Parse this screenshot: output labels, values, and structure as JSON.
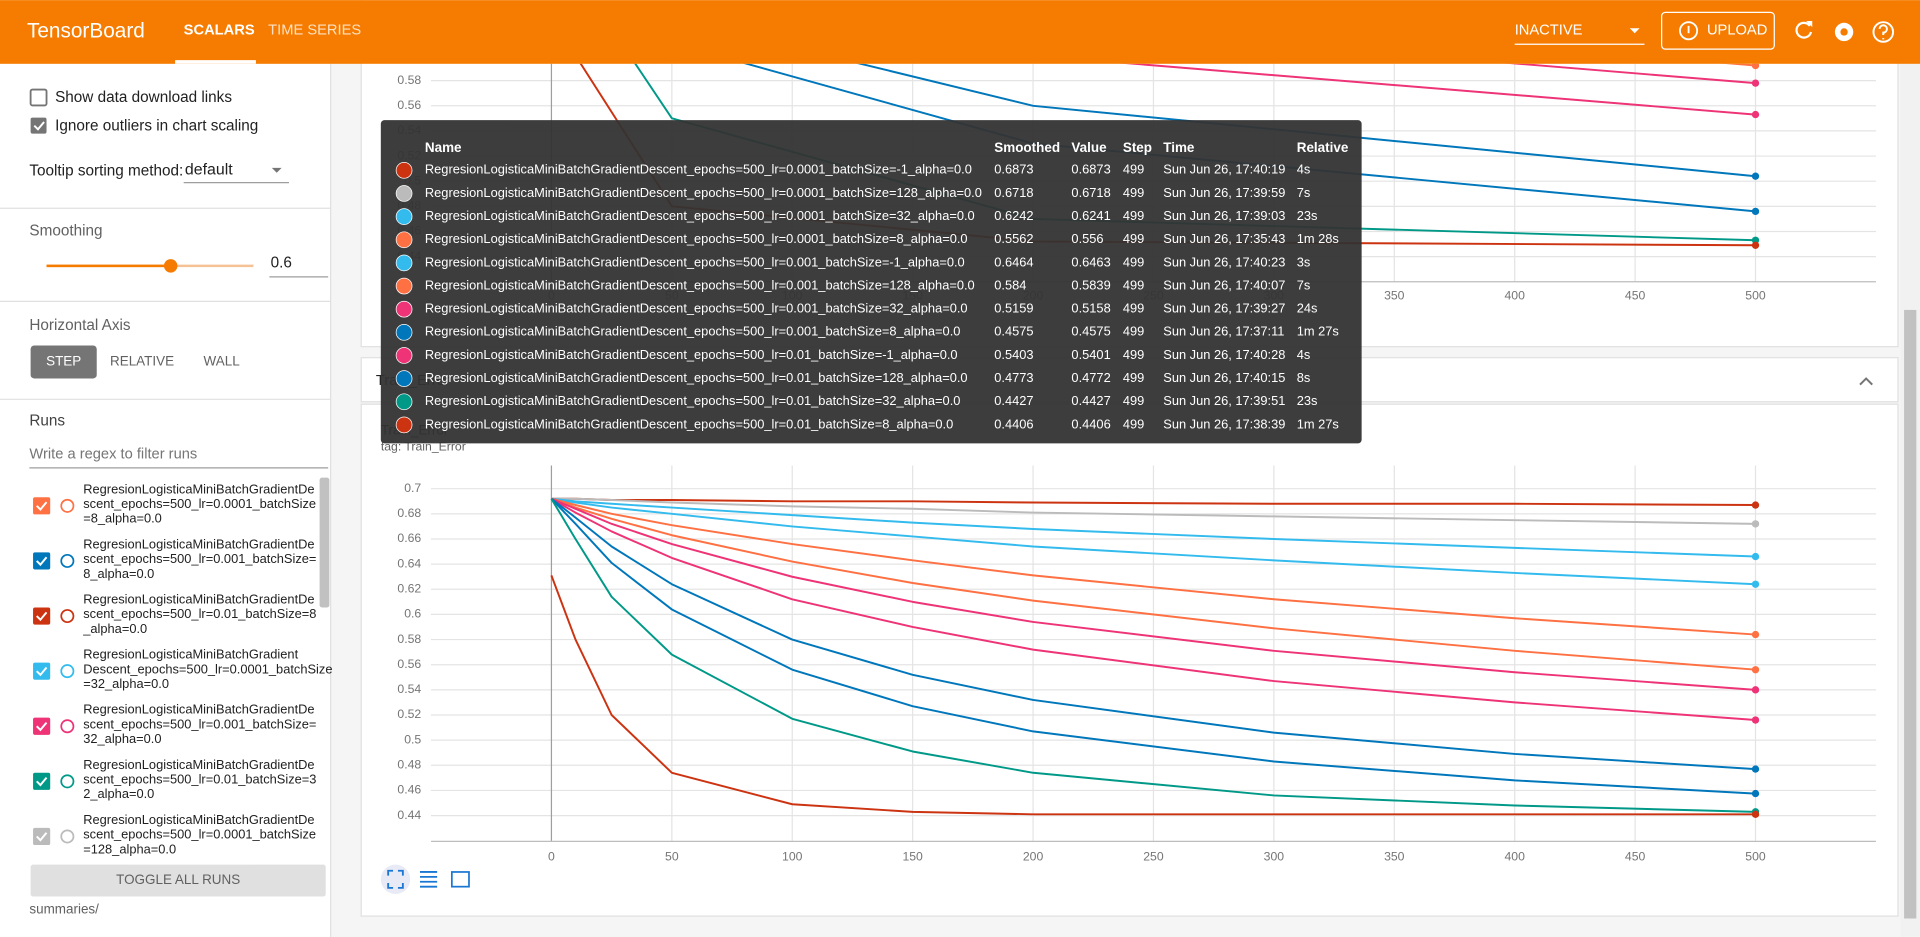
{
  "header": {
    "title": "TensorBoard",
    "tabs": [
      "SCALARS",
      "TIME SERIES"
    ],
    "status": "INACTIVE",
    "upload": "UPLOAD"
  },
  "sidebar": {
    "show_download": "Show data download links",
    "ignore_outliers": "Ignore outliers in chart scaling",
    "tooltip_sorting_label": "Tooltip sorting method:",
    "tooltip_sorting_value": "default",
    "smoothing_title": "Smoothing",
    "smoothing_value": 0.6,
    "horizontal_axis_title": "Horizontal Axis",
    "axis_options": [
      "STEP",
      "RELATIVE",
      "WALL"
    ],
    "runs_title": "Runs",
    "runs_filter_placeholder": "Write a regex to filter runs",
    "runs": [
      {
        "lines": [
          "RegresionLogisticaMiniBatchGradientDe",
          "scent_epochs=500_lr=0.0001_batchSize",
          "=8_alpha=0.0"
        ],
        "color": "#ff7043"
      },
      {
        "lines": [
          "RegresionLogisticaMiniBatchGradientDe",
          "scent_epochs=500_lr=0.001_batchSize=",
          "8_alpha=0.0"
        ],
        "color": "#0077bb"
      },
      {
        "lines": [
          "RegresionLogisticaMiniBatchGradientDe",
          "scent_epochs=500_lr=0.01_batchSize=8",
          "_alpha=0.0"
        ],
        "color": "#cc3311"
      },
      {
        "lines": [
          "RegresionLogisticaMiniBatchGradient",
          "Descent_epochs=500_lr=0.0001_batchSize",
          "=32_alpha=0.0"
        ],
        "color": "#33bbee"
      },
      {
        "lines": [
          "RegresionLogisticaMiniBatchGradientDe",
          "scent_epochs=500_lr=0.001_batchSize=",
          "32_alpha=0.0"
        ],
        "color": "#ee3377"
      },
      {
        "lines": [
          "RegresionLogisticaMiniBatchGradientDe",
          "scent_epochs=500_lr=0.01_batchSize=3",
          "2_alpha=0.0"
        ],
        "color": "#009988"
      },
      {
        "lines": [
          "RegresionLogisticaMiniBatchGradientDe",
          "scent_epochs=500_lr=0.0001_batchSize",
          "=128_alpha=0.0"
        ],
        "color": "#bbbbbb"
      }
    ],
    "toggle": "TOGGLE ALL RUNS",
    "footer": "summaries/"
  },
  "tooltip": {
    "columns": [
      "Name",
      "Smoothed",
      "Value",
      "Step",
      "Time",
      "Relative"
    ],
    "rows": [
      [
        "RegresionLogisticaMiniBatchGradientDescent_epochs=500_lr=0.0001_batchSize=-1_alpha=0.0",
        0.6873,
        0.6873,
        499,
        "Sun Jun 26, 17:40:19",
        "4s"
      ],
      [
        "RegresionLogisticaMiniBatchGradientDescent_epochs=500_lr=0.0001_batchSize=128_alpha=0.0",
        0.6718,
        0.6718,
        499,
        "Sun Jun 26, 17:39:59",
        "7s"
      ],
      [
        "RegresionLogisticaMiniBatchGradientDescent_epochs=500_lr=0.0001_batchSize=32_alpha=0.0",
        0.6242,
        0.6241,
        499,
        "Sun Jun 26, 17:39:03",
        "23s"
      ],
      [
        "RegresionLogisticaMiniBatchGradientDescent_epochs=500_lr=0.0001_batchSize=8_alpha=0.0",
        0.5562,
        0.556,
        499,
        "Sun Jun 26, 17:35:43",
        "1m 28s"
      ],
      [
        "RegresionLogisticaMiniBatchGradientDescent_epochs=500_lr=0.001_batchSize=-1_alpha=0.0",
        0.6464,
        0.6463,
        499,
        "Sun Jun 26, 17:40:23",
        "3s"
      ],
      [
        "RegresionLogisticaMiniBatchGradientDescent_epochs=500_lr=0.001_batchSize=128_alpha=0.0",
        0.584,
        0.5839,
        499,
        "Sun Jun 26, 17:40:07",
        "7s"
      ],
      [
        "RegresionLogisticaMiniBatchGradientDescent_epochs=500_lr=0.001_batchSize=32_alpha=0.0",
        0.5159,
        0.5158,
        499,
        "Sun Jun 26, 17:39:27",
        "24s"
      ],
      [
        "RegresionLogisticaMiniBatchGradientDescent_epochs=500_lr=0.001_batchSize=8_alpha=0.0",
        0.4575,
        0.4575,
        499,
        "Sun Jun 26, 17:37:11",
        "1m 27s"
      ],
      [
        "RegresionLogisticaMiniBatchGradientDescent_epochs=500_lr=0.01_batchSize=-1_alpha=0.0",
        0.5403,
        0.5401,
        499,
        "Sun Jun 26, 17:40:28",
        "4s"
      ],
      [
        "RegresionLogisticaMiniBatchGradientDescent_epochs=500_lr=0.01_batchSize=128_alpha=0.0",
        0.4773,
        0.4772,
        499,
        "Sun Jun 26, 17:40:15",
        "8s"
      ],
      [
        "RegresionLogisticaMiniBatchGradientDescent_epochs=500_lr=0.01_batchSize=32_alpha=0.0",
        0.4427,
        0.4427,
        499,
        "Sun Jun 26, 17:39:51",
        "23s"
      ],
      [
        "RegresionLogisticaMiniBatchGradientDescent_epochs=500_lr=0.01_batchSize=8_alpha=0.0",
        0.4406,
        0.4406,
        499,
        "Sun Jun 26, 17:38:39",
        "1m 27s"
      ]
    ]
  },
  "group_title": "Train_Error",
  "card": {
    "title": "Train_Error",
    "tag": "tag: Train_Error"
  },
  "chart_data": [
    {
      "type": "line",
      "x": [
        0,
        50,
        200,
        500
      ],
      "xlim": [
        -50,
        550
      ],
      "ylim": [
        0.42,
        0.72
      ],
      "xticks": [
        0,
        50,
        100,
        150,
        200,
        250,
        300,
        350,
        400,
        450,
        500
      ],
      "yticks": [
        0.44,
        0.46,
        0.48,
        0.5,
        0.52,
        0.54,
        0.56,
        0.58
      ],
      "grid": true,
      "series": [
        {
          "color": "#ff7043",
          "values": [
            0.693,
            0.68,
            0.64,
            0.592
          ]
        },
        {
          "color": "#ee3377",
          "values": [
            0.693,
            0.67,
            0.625,
            0.578
          ]
        },
        {
          "color": "#ee3377",
          "values": [
            0.693,
            0.66,
            0.6,
            0.553
          ]
        },
        {
          "color": "#0077bb",
          "values": [
            0.693,
            0.63,
            0.56,
            0.504
          ]
        },
        {
          "color": "#0077bb",
          "values": [
            0.693,
            0.61,
            0.53,
            0.476
          ]
        },
        {
          "color": "#009988",
          "values": [
            0.693,
            0.55,
            0.47,
            0.453
          ]
        },
        {
          "color": "#cc3311",
          "values": [
            0.63,
            0.48,
            0.452,
            0.449
          ]
        }
      ]
    },
    {
      "type": "line",
      "x": [
        0,
        10,
        25,
        50,
        100,
        150,
        200,
        300,
        400,
        500
      ],
      "xlim": [
        -50,
        550
      ],
      "ylim": [
        0.4195,
        0.7185
      ],
      "xticks": [
        0,
        50,
        100,
        150,
        200,
        250,
        300,
        350,
        400,
        450,
        500
      ],
      "yticks": [
        0.44,
        0.46,
        0.48,
        0.5,
        0.52,
        0.54,
        0.56,
        0.58,
        0.6,
        0.62,
        0.64,
        0.66,
        0.68,
        0.7
      ],
      "grid": true,
      "series": [
        {
          "color": "#cc3311",
          "values": [
            0.692,
            0.692,
            0.691,
            0.691,
            0.69,
            0.69,
            0.689,
            0.688,
            0.688,
            0.687
          ]
        },
        {
          "color": "#bbbbbb",
          "values": [
            0.692,
            0.692,
            0.691,
            0.689,
            0.686,
            0.684,
            0.681,
            0.678,
            0.675,
            0.672
          ]
        },
        {
          "color": "#33bbee",
          "values": [
            0.692,
            0.689,
            0.685,
            0.68,
            0.67,
            0.662,
            0.654,
            0.643,
            0.633,
            0.624
          ]
        },
        {
          "color": "#ff7043",
          "values": [
            0.692,
            0.685,
            0.676,
            0.663,
            0.642,
            0.625,
            0.611,
            0.589,
            0.571,
            0.556
          ]
        },
        {
          "color": "#33bbee",
          "values": [
            0.692,
            0.69,
            0.688,
            0.685,
            0.679,
            0.673,
            0.668,
            0.66,
            0.653,
            0.646
          ]
        },
        {
          "color": "#ff7043",
          "values": [
            0.692,
            0.687,
            0.68,
            0.671,
            0.656,
            0.643,
            0.631,
            0.612,
            0.597,
            0.584
          ]
        },
        {
          "color": "#ee3377",
          "values": [
            0.692,
            0.681,
            0.666,
            0.645,
            0.612,
            0.59,
            0.572,
            0.547,
            0.53,
            0.516
          ]
        },
        {
          "color": "#0077bb",
          "values": [
            0.692,
            0.672,
            0.641,
            0.604,
            0.556,
            0.527,
            0.507,
            0.483,
            0.468,
            0.4575
          ]
        },
        {
          "color": "#ee3377",
          "values": [
            0.692,
            0.684,
            0.672,
            0.656,
            0.63,
            0.61,
            0.594,
            0.571,
            0.554,
            0.54
          ]
        },
        {
          "color": "#0077bb",
          "values": [
            0.692,
            0.677,
            0.654,
            0.624,
            0.58,
            0.552,
            0.532,
            0.506,
            0.489,
            0.477
          ]
        },
        {
          "color": "#009988",
          "values": [
            0.692,
            0.66,
            0.614,
            0.568,
            0.517,
            0.491,
            0.474,
            0.456,
            0.448,
            0.443
          ]
        },
        {
          "color": "#cc3311",
          "values": [
            0.631,
            0.58,
            0.52,
            0.474,
            0.449,
            0.443,
            0.441,
            0.441,
            0.441,
            0.441
          ]
        }
      ]
    }
  ]
}
